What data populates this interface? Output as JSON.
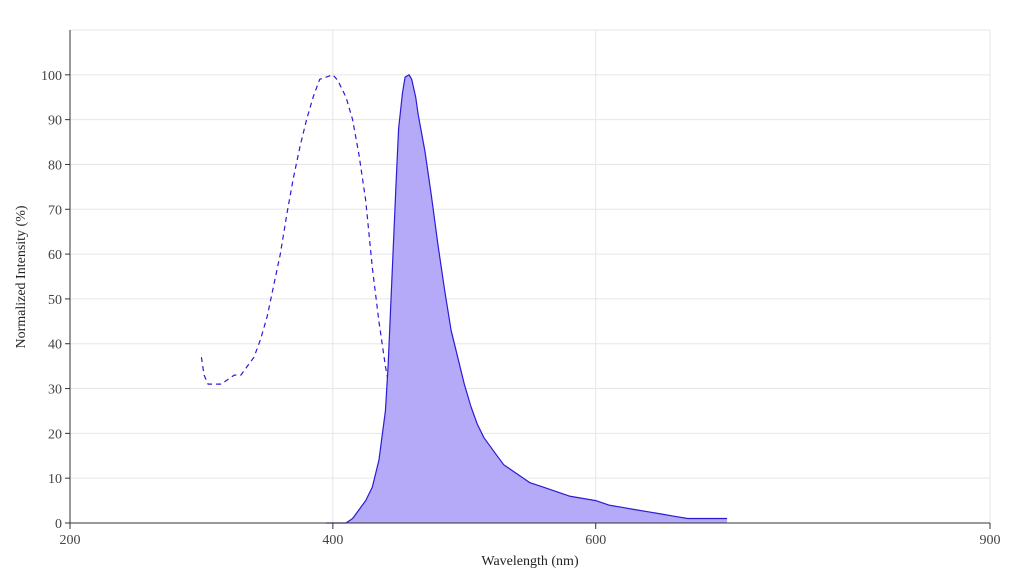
{
  "chart_data": {
    "type": "line",
    "title": "",
    "xlabel": "Wavelength (nm)",
    "ylabel": "Normalized Intensity (%)",
    "xlim": [
      200,
      900
    ],
    "ylim": [
      0,
      110
    ],
    "x_ticks": [
      200,
      400,
      600,
      900
    ],
    "x_tick_labels": [
      "200",
      "400",
      "600",
      "900"
    ],
    "y_ticks": [
      0,
      10,
      20,
      30,
      40,
      50,
      60,
      70,
      80,
      90,
      100
    ],
    "y_tick_labels": [
      "0",
      "10",
      "20",
      "30",
      "40",
      "50",
      "60",
      "70",
      "80",
      "90",
      "100"
    ],
    "grid": true,
    "legend": "none",
    "series": [
      {
        "style": "dashed",
        "color": "#2b1bd6",
        "fill": false,
        "x": [
          300,
          302,
          305,
          308,
          310,
          315,
          320,
          325,
          330,
          335,
          340,
          345,
          350,
          355,
          360,
          365,
          370,
          375,
          380,
          385,
          390,
          395,
          400,
          403,
          405,
          410,
          415,
          420,
          425,
          430,
          435,
          440,
          445,
          450,
          455,
          460,
          465,
          470,
          480,
          500,
          520,
          540,
          545,
          560,
          580,
          600,
          620,
          640
        ],
        "y": [
          37,
          33,
          31,
          31,
          31,
          31,
          32,
          33,
          33,
          35,
          37,
          41,
          46,
          53,
          60,
          69,
          77,
          84,
          90,
          95,
          99,
          99.5,
          100,
          99,
          98,
          95,
          90,
          82,
          72,
          57,
          45,
          35,
          27,
          20,
          14,
          10,
          7,
          5,
          4,
          3,
          3,
          3,
          2.5,
          2,
          2,
          2,
          2,
          2
        ]
      },
      {
        "style": "solid",
        "color": "#2b1bd6",
        "fill": true,
        "fill_color": "#b4aaf8",
        "x": [
          395,
          405,
          410,
          415,
          420,
          425,
          430,
          435,
          440,
          442,
          445,
          448,
          450,
          453,
          455,
          458,
          460,
          463,
          465,
          470,
          475,
          480,
          485,
          490,
          495,
          500,
          505,
          510,
          515,
          520,
          525,
          530,
          535,
          540,
          545,
          550,
          560,
          570,
          580,
          590,
          600,
          610,
          620,
          630,
          640,
          650,
          660,
          670,
          680,
          690,
          700
        ],
        "y": [
          0,
          0,
          0,
          1,
          3,
          5,
          8,
          14,
          25,
          35,
          55,
          75,
          88,
          96,
          99.5,
          100,
          99,
          95,
          91,
          83,
          73,
          62,
          52,
          43,
          37,
          31,
          26,
          22,
          19,
          17,
          15,
          13,
          12,
          11,
          10,
          9,
          8,
          7,
          6,
          5.5,
          5,
          4,
          3.5,
          3,
          2.5,
          2,
          1.5,
          1,
          1,
          1,
          1
        ]
      }
    ]
  }
}
